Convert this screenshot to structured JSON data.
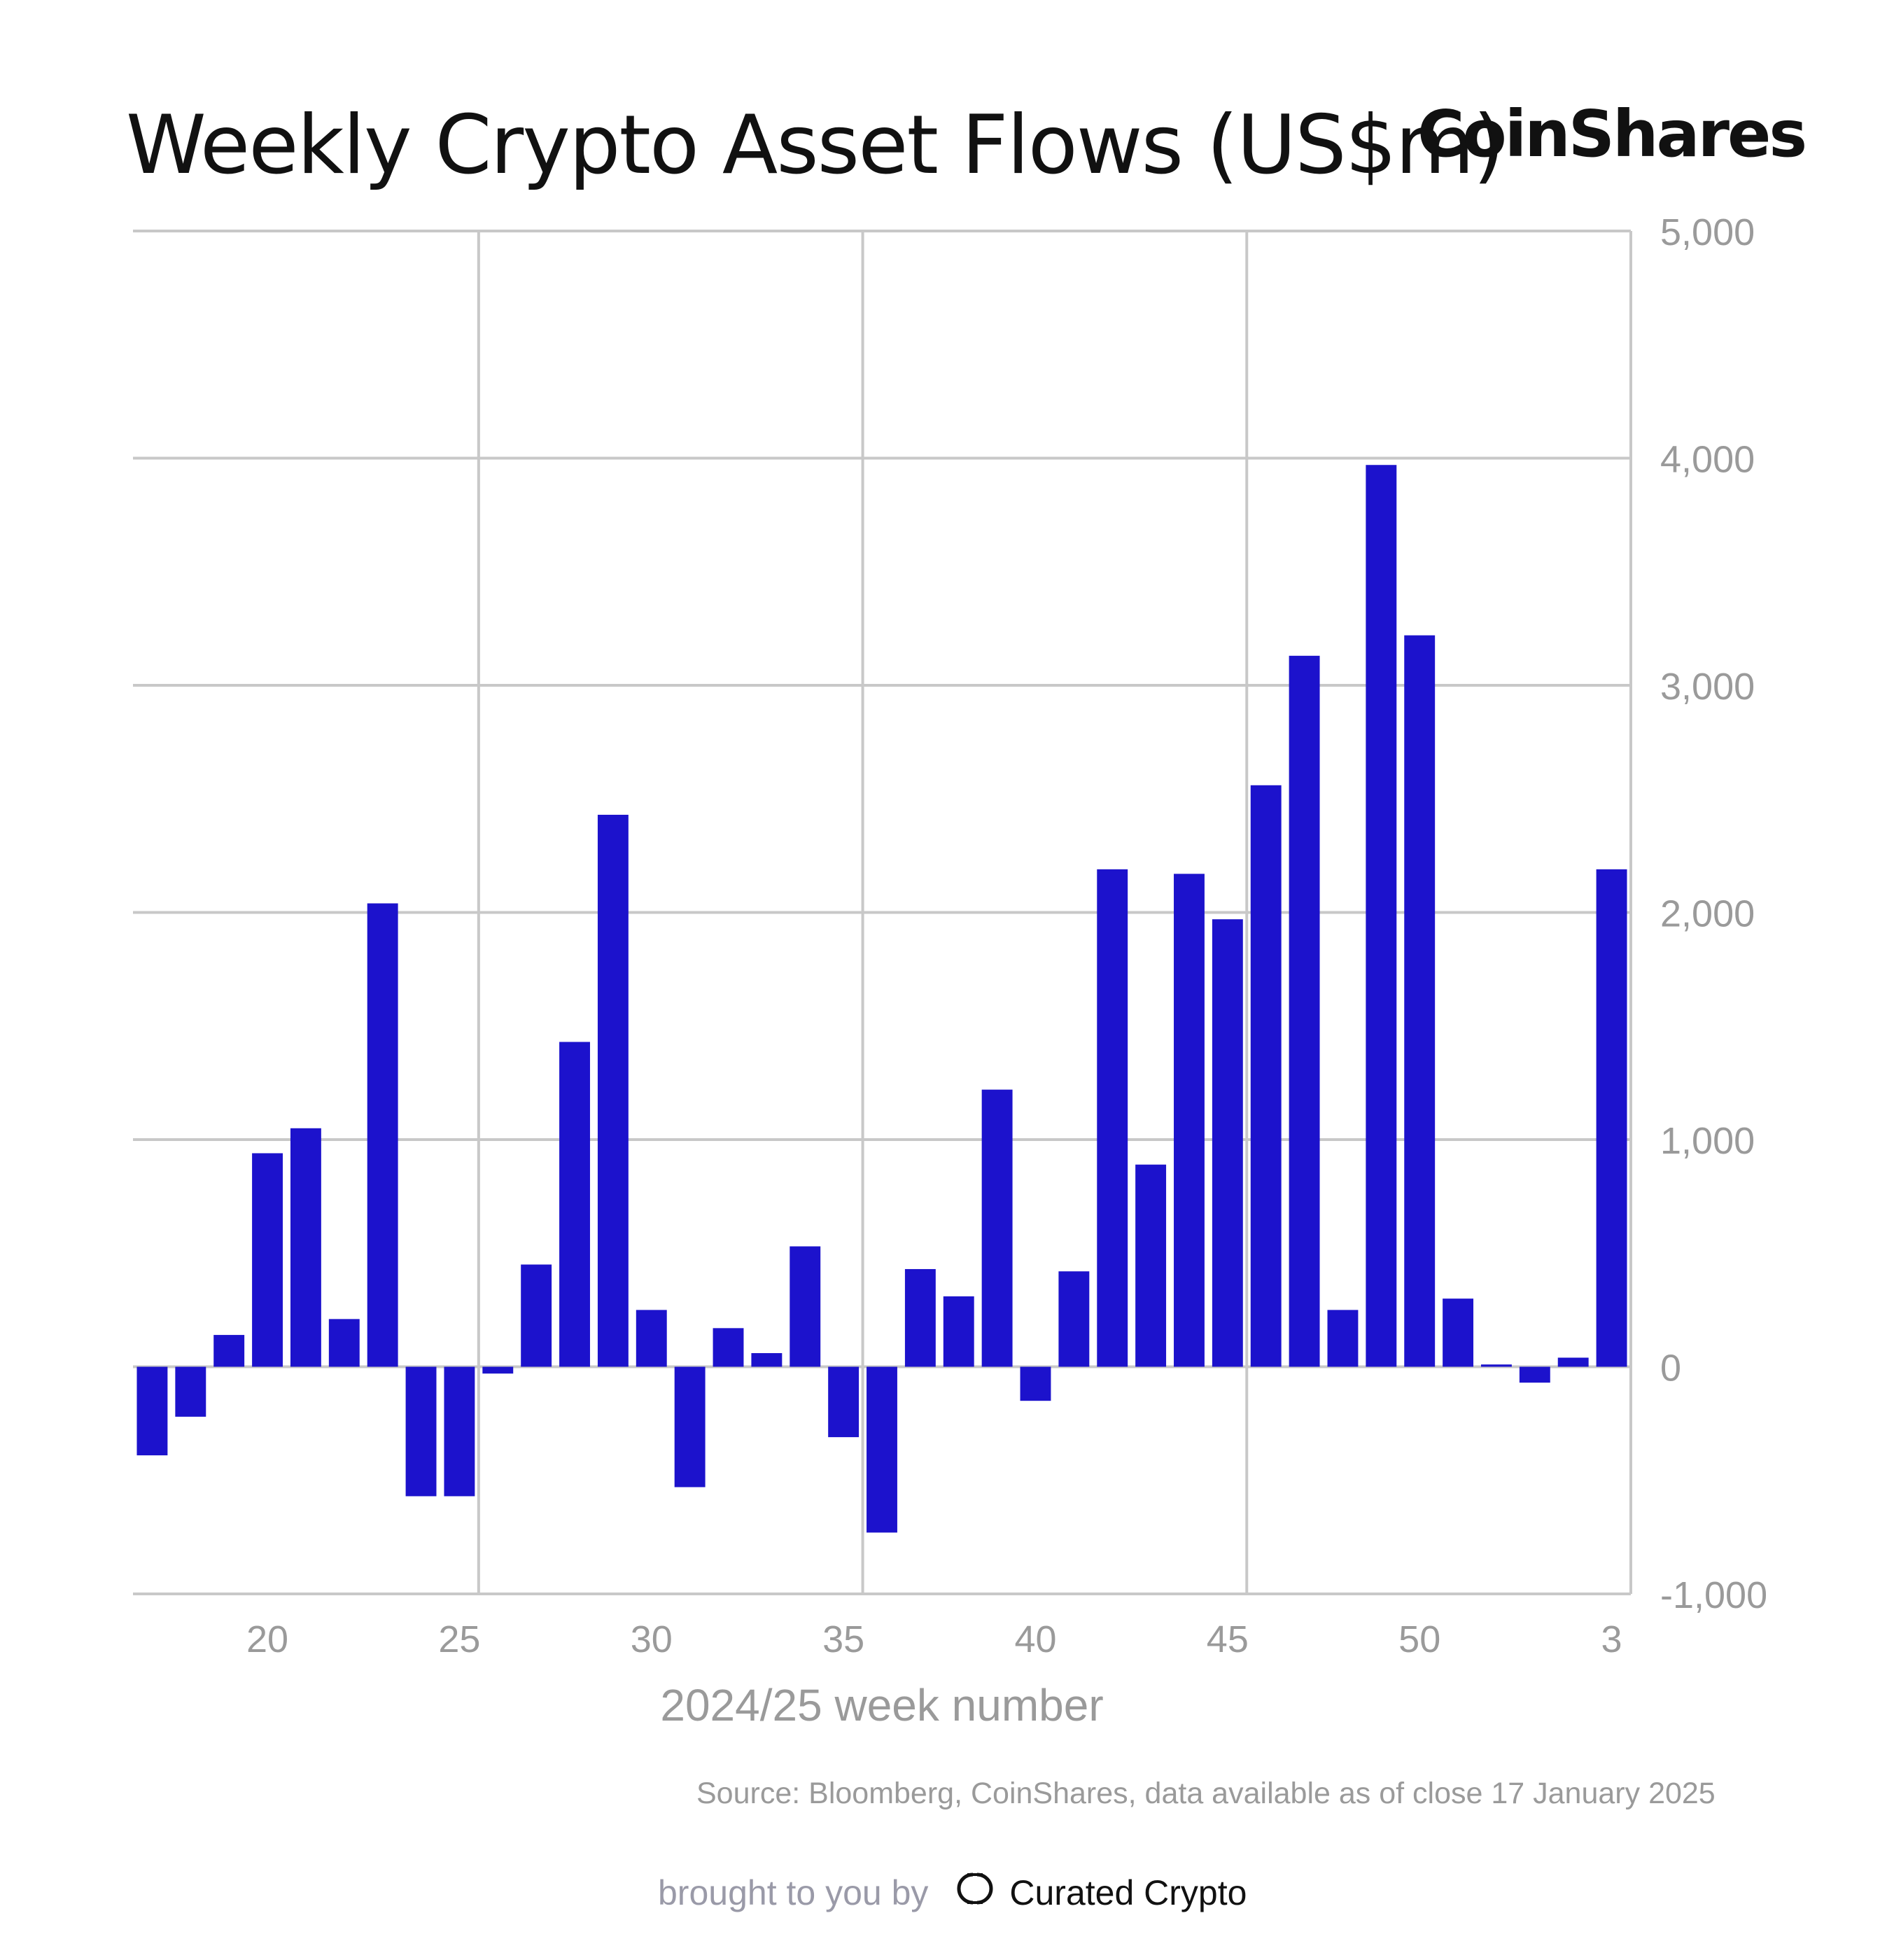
{
  "title": "Weekly Crypto Asset Flows (US$m)",
  "brand": "CoinShares",
  "source": "Source: Bloomberg, CoinShares, data available as of close 17 January 2025",
  "footer": {
    "prefix": "brought to you by",
    "name": "Curated Crypto",
    "logo_icon": "curated-crypto-logo-icon"
  },
  "colors": {
    "bar": "#1c12cc",
    "grid": "#c8c8c8",
    "axis_text": "#9a9a9a"
  },
  "chart_data": {
    "type": "bar",
    "xlabel": "2024/25 week number",
    "ylabel": "",
    "ylim": [
      -1000,
      5000
    ],
    "y_ticks": [
      5000,
      4000,
      3000,
      2000,
      1000,
      0,
      -1000
    ],
    "y_tick_labels": [
      "5,000",
      "4,000",
      "3,000",
      "2,000",
      "1,000",
      "0",
      "-1,000"
    ],
    "x_tick_labels": [
      "20",
      "25",
      "30",
      "35",
      "40",
      "45",
      "50",
      "3"
    ],
    "grid": true,
    "categories": [
      "17",
      "18",
      "19",
      "20",
      "21",
      "22",
      "23",
      "24",
      "25",
      "26",
      "27",
      "28",
      "29",
      "30",
      "31",
      "32",
      "33",
      "34",
      "35",
      "36",
      "37",
      "38",
      "39",
      "40",
      "41",
      "42",
      "43",
      "44",
      "45",
      "46",
      "47",
      "48",
      "49",
      "50",
      "51",
      "52",
      "1",
      "2",
      "3"
    ],
    "values": [
      -390,
      -220,
      140,
      940,
      1050,
      210,
      2040,
      -570,
      -570,
      -30,
      450,
      1430,
      2430,
      250,
      -530,
      170,
      60,
      530,
      -310,
      -730,
      430,
      310,
      1220,
      -150,
      420,
      2190,
      890,
      2170,
      1970,
      2560,
      3130,
      250,
      3970,
      3220,
      300,
      10,
      -70,
      40,
      2190
    ]
  }
}
